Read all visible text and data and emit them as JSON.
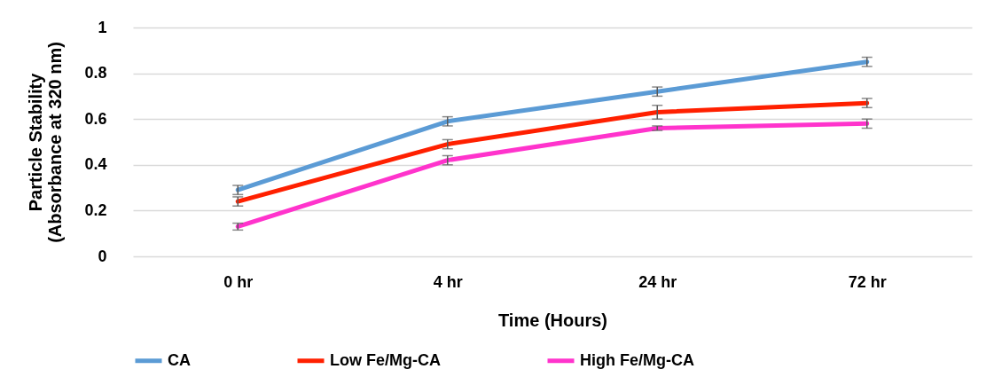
{
  "chart_data": {
    "type": "line",
    "xlabel": "Time (Hours)",
    "ylabel": "Particle Stability\n(Absorbance at 320 nm)",
    "categories": [
      "0 hr",
      "4 hr",
      "24 hr",
      "72 hr"
    ],
    "series": [
      {
        "name": "CA",
        "color": "#5b9bd5",
        "values": [
          0.29,
          0.59,
          0.72,
          0.85
        ],
        "errors": [
          0.02,
          0.02,
          0.02,
          0.02
        ]
      },
      {
        "name": "Low Fe/Mg-CA",
        "color": "#ff2000",
        "values": [
          0.24,
          0.49,
          0.63,
          0.67
        ],
        "errors": [
          0.02,
          0.02,
          0.03,
          0.02
        ]
      },
      {
        "name": "High Fe/Mg-CA",
        "color": "#ff33cc",
        "values": [
          0.13,
          0.42,
          0.56,
          0.58
        ],
        "errors": [
          0.015,
          0.02,
          0.01,
          0.02
        ]
      }
    ],
    "ylim": [
      0,
      1
    ],
    "yticks": [
      0,
      0.2,
      0.4,
      0.6,
      0.8,
      1
    ],
    "grid": "y",
    "legend": "bottom",
    "marker": "none",
    "line_style": "solid"
  }
}
